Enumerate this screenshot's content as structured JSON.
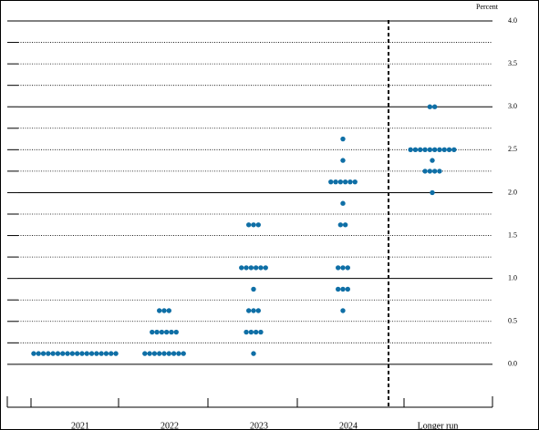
{
  "chart_data": {
    "type": "dot",
    "y_label": "Percent",
    "categories": [
      "2021",
      "2022",
      "2023",
      "2024",
      "Longer run"
    ],
    "columns": [
      {
        "levels": [
          0.125
        ],
        "counts": [
          18
        ]
      },
      {
        "levels": [
          0.125,
          0.375,
          0.625
        ],
        "counts": [
          9,
          6,
          3
        ]
      },
      {
        "levels": [
          0.125,
          0.375,
          0.625,
          0.875,
          1.125,
          1.625
        ],
        "counts": [
          1,
          4,
          3,
          1,
          6,
          3
        ]
      },
      {
        "levels": [
          0.625,
          0.875,
          1.125,
          1.625,
          1.875,
          2.125,
          2.375,
          2.625
        ],
        "counts": [
          1,
          3,
          3,
          2,
          1,
          6,
          1,
          1
        ]
      },
      {
        "levels": [
          2.0,
          2.25,
          2.375,
          2.5,
          3.0
        ],
        "counts": [
          1,
          4,
          1,
          10,
          2
        ]
      }
    ],
    "color": "#0f6fa6",
    "ylim": [
      -0.5,
      4.0
    ],
    "yticks": [
      {
        "value": 0,
        "label": "0.0"
      },
      0.5,
      {
        "value": 1,
        "label": "1.0"
      },
      1.5,
      {
        "value": 2,
        "label": "2.0"
      },
      2.5,
      {
        "value": 3,
        "label": "3.0"
      },
      3.5,
      {
        "value": 4,
        "label": "4.0"
      }
    ],
    "grid_lines": [
      0,
      0.25,
      0.5,
      0.75,
      1,
      1.25,
      1.5,
      1.75,
      2,
      2.25,
      2.5,
      2.75,
      3,
      3.25,
      3.5,
      3.75,
      4
    ]
  }
}
